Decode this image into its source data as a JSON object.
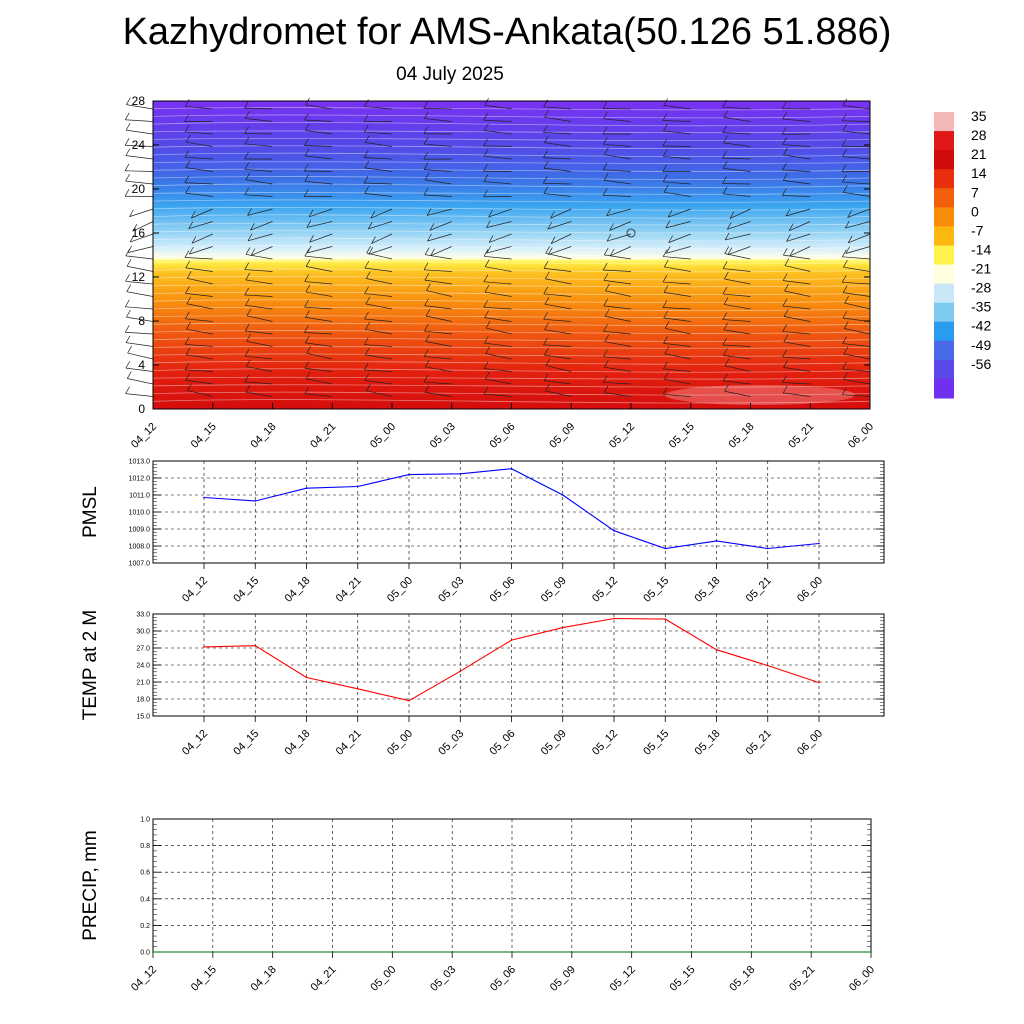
{
  "title": "Kazhydromet for AMS-Ankata(50.126 51.886)",
  "date": "04 July 2025",
  "chart_data": [
    {
      "type": "heatmap",
      "id": "cross-section",
      "description_of_axes": "time vs height",
      "x_ticks": [
        "04_12",
        "04_15",
        "04_18",
        "04_21",
        "05_00",
        "05_03",
        "05_06",
        "05_09",
        "05_12",
        "05_15",
        "05_18",
        "05_21",
        "06_00"
      ],
      "y_ticks": [
        0,
        4,
        8,
        12,
        16,
        20,
        24,
        28
      ],
      "ylim": [
        0,
        28
      ],
      "colorbar": {
        "labels": [
          "35",
          "28",
          "21",
          "14",
          "7",
          "0",
          "-7",
          "-14",
          "-21",
          "-28",
          "-35",
          "-42",
          "-49",
          "-56"
        ],
        "colors": [
          "#f2b8b8",
          "#e01818",
          "#d10a0a",
          "#e8300f",
          "#f2600c",
          "#fa8c0a",
          "#fcb80f",
          "#fff24a",
          "#ffffe0",
          "#c8e8f8",
          "#7ccaf0",
          "#2a9cf0",
          "#4a6ae8",
          "#5a48e8",
          "#7030f0"
        ]
      },
      "wind_barbs": true,
      "grid": false
    },
    {
      "type": "line",
      "id": "pmsl",
      "ylabel": "PMSL",
      "categories": [
        "04_12",
        "04_15",
        "04_18",
        "04_21",
        "05_00",
        "05_03",
        "05_06",
        "05_09",
        "05_12",
        "05_15",
        "05_18",
        "05_21",
        "06_00"
      ],
      "values": [
        1010.85,
        1010.65,
        1011.4,
        1011.5,
        1012.2,
        1012.25,
        1012.55,
        1011.0,
        1008.9,
        1007.85,
        1008.3,
        1007.85,
        1008.15
      ],
      "ylim": [
        1007.0,
        1013.0
      ],
      "y_ticks": [
        "1007.0",
        "1008.0",
        "1009.0",
        "1010.0",
        "1011.0",
        "1012.0",
        "1013.0"
      ],
      "color": "#0000ff",
      "grid": true
    },
    {
      "type": "line",
      "id": "temp",
      "ylabel": "TEMP at 2 M",
      "categories": [
        "04_12",
        "04_15",
        "04_18",
        "04_21",
        "05_00",
        "05_03",
        "05_06",
        "05_09",
        "05_12",
        "05_15",
        "05_18",
        "05_21",
        "06_00"
      ],
      "values": [
        27.2,
        27.4,
        21.8,
        19.8,
        17.7,
        22.9,
        28.4,
        30.6,
        32.2,
        32.1,
        26.7,
        23.9,
        20.9
      ],
      "ylim": [
        15.0,
        33.0
      ],
      "y_ticks": [
        "15.0",
        "18.0",
        "21.0",
        "24.0",
        "27.0",
        "30.0",
        "33.0"
      ],
      "color": "#ff0000",
      "grid": true
    },
    {
      "type": "line",
      "id": "precip",
      "ylabel": "PRECIP, mm",
      "categories": [
        "04_12",
        "04_15",
        "04_18",
        "04_21",
        "05_00",
        "05_03",
        "05_06",
        "05_09",
        "05_12",
        "05_15",
        "05_18",
        "05_21",
        "06_00"
      ],
      "values": [
        0,
        0,
        0,
        0,
        0,
        0,
        0,
        0,
        0,
        0,
        0,
        0,
        0
      ],
      "ylim": [
        0.0,
        1.0
      ],
      "y_ticks": [
        "0.0",
        "0.2",
        "0.4",
        "0.6",
        "0.8",
        "1.0"
      ],
      "color": "#006400",
      "grid": true
    }
  ]
}
